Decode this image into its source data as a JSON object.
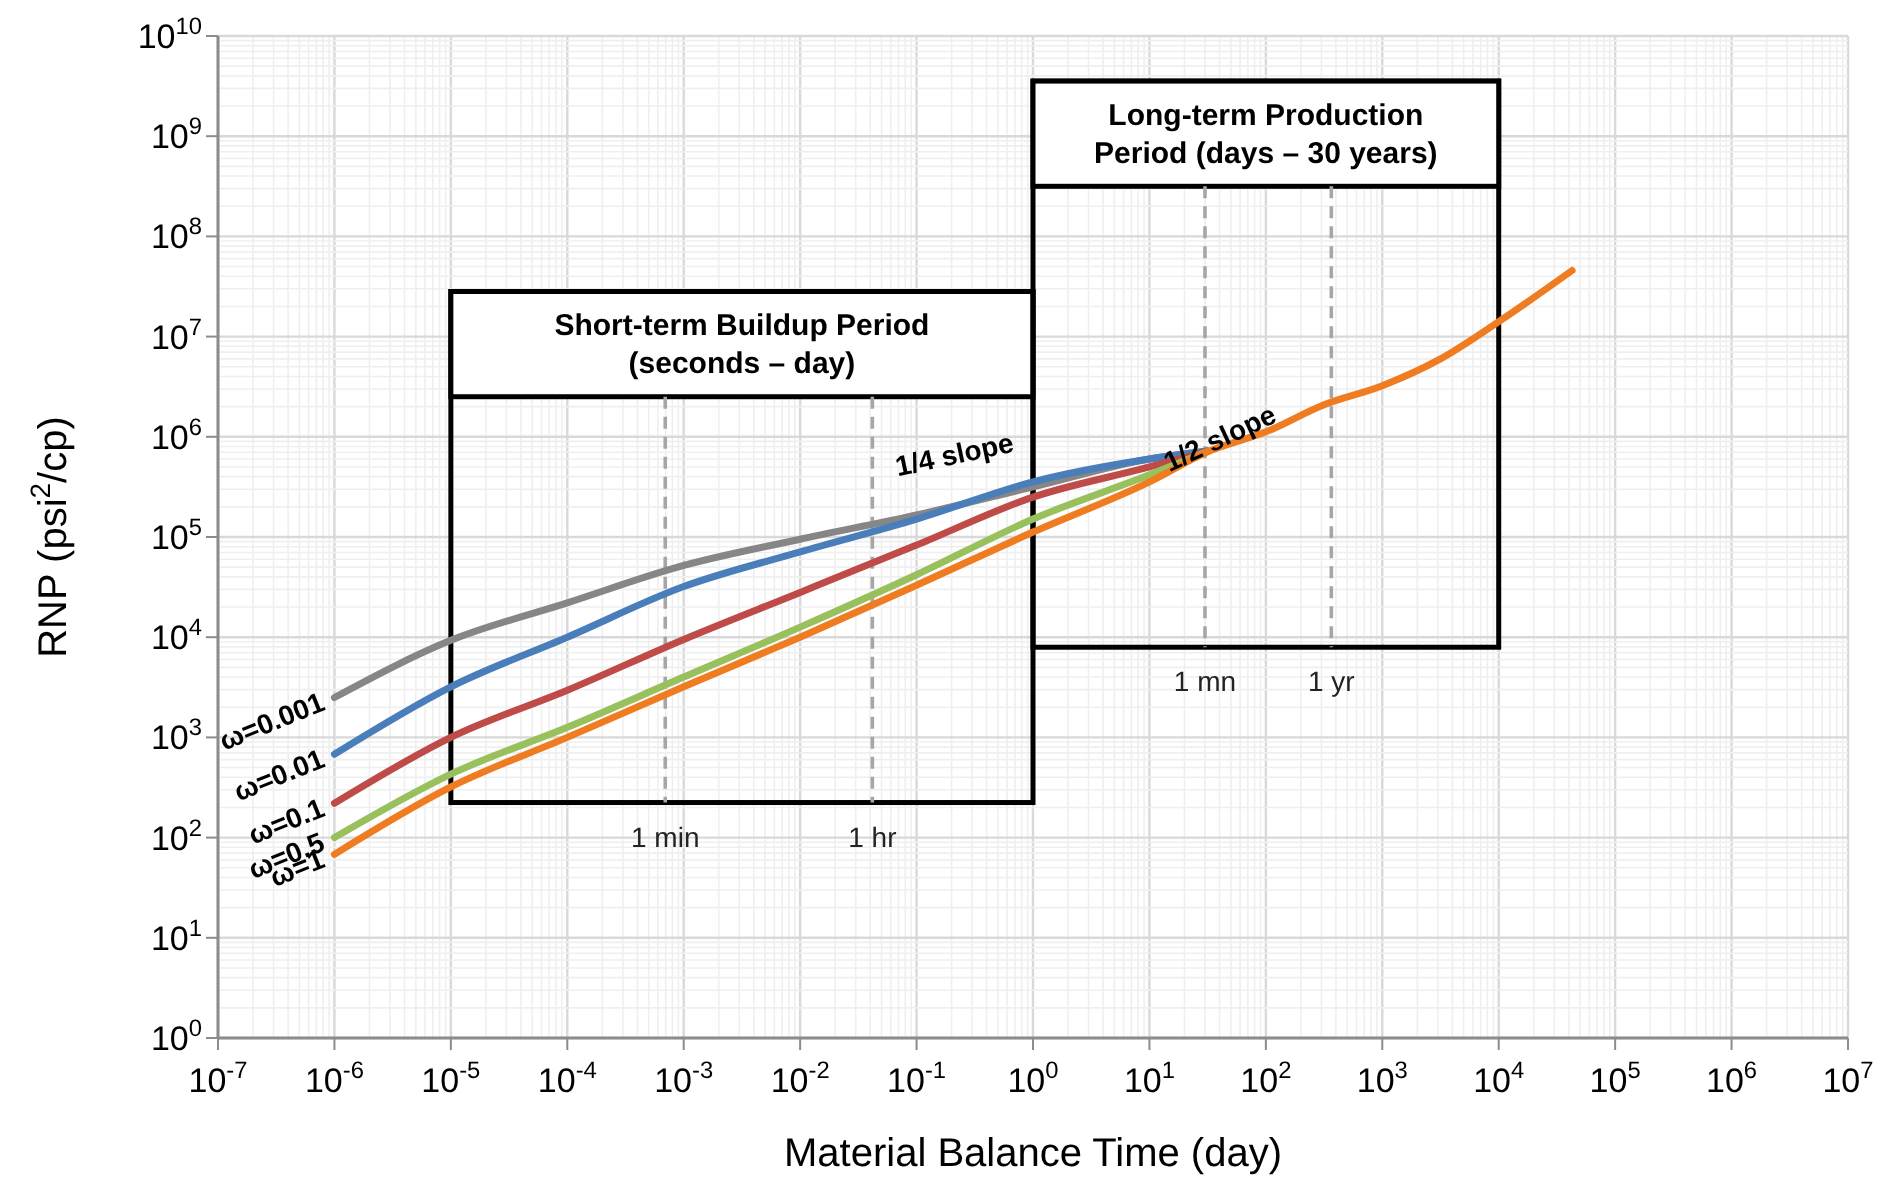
{
  "chart_data": {
    "type": "line",
    "xlabel": "Material Balance Time (day)",
    "ylabel": "RNP (psi$^{2}$/cp)",
    "log": "xy",
    "grid": true,
    "line_style": "solid",
    "marker": "none",
    "x": [
      1e-06,
      1e-05,
      0.0001,
      0.001,
      0.01,
      0.1,
      1,
      10,
      31.6,
      100,
      316,
      1000,
      3162,
      10000,
      42700
    ],
    "xlim": [
      1e-07,
      10000000.0
    ],
    "ylim": [
      1,
      10000000000.0
    ],
    "xticks": [
      {
        "value": 1e-07,
        "label": "10$^{-7}$"
      },
      {
        "value": 1e-06,
        "label": "10$^{-6}$"
      },
      {
        "value": 1e-05,
        "label": "10$^{-5}$"
      },
      {
        "value": 0.0001,
        "label": "10$^{-4}$"
      },
      {
        "value": 0.001,
        "label": "10$^{-3}$"
      },
      {
        "value": 0.01,
        "label": "10$^{-2}$"
      },
      {
        "value": 0.1,
        "label": "10$^{-1}$"
      },
      {
        "value": 1,
        "label": "10$^{0}$"
      },
      {
        "value": 10,
        "label": "10$^{1}$"
      },
      {
        "value": 100,
        "label": "10$^{2}$"
      },
      {
        "value": 1000,
        "label": "10$^{3}$"
      },
      {
        "value": 10000,
        "label": "10$^{4}$"
      },
      {
        "value": 100000,
        "label": "10$^{5}$"
      },
      {
        "value": 1000000,
        "label": "10$^{6}$"
      },
      {
        "value": 10000000,
        "label": "10$^{7}$"
      }
    ],
    "yticks": [
      {
        "value": 1,
        "label": "10$^{0}$"
      },
      {
        "value": 10,
        "label": "10$^{1}$"
      },
      {
        "value": 100,
        "label": "10$^{2}$"
      },
      {
        "value": 1000,
        "label": "10$^{3}$"
      },
      {
        "value": 10000,
        "label": "10$^{4}$"
      },
      {
        "value": 100000,
        "label": "10$^{5}$"
      },
      {
        "value": 1000000,
        "label": "10$^{6}$"
      },
      {
        "value": 10000000,
        "label": "10$^{7}$"
      },
      {
        "value": 100000000,
        "label": "10$^{8}$"
      },
      {
        "value": 1000000000,
        "label": "10$^{9}$"
      },
      {
        "value": 10000000000,
        "label": "10$^{10}$"
      }
    ],
    "series": [
      {
        "name": "ω=0.001",
        "color": "#868686",
        "values": [
          2500,
          9300,
          22000,
          52000,
          95000,
          166000,
          316000,
          600000,
          720000,
          null,
          null,
          null,
          null,
          null,
          null
        ]
      },
      {
        "name": "ω=0.01",
        "color": "#4a7ebb",
        "values": [
          680,
          3200,
          10000,
          32000,
          71000,
          151000,
          355000,
          600000,
          720000,
          null,
          null,
          null,
          null,
          null,
          null
        ]
      },
      {
        "name": "ω=0.1",
        "color": "#be4b48",
        "values": [
          220,
          1000,
          2950,
          9500,
          28000,
          83000,
          250000,
          500000,
          720000,
          null,
          null,
          null,
          null,
          null,
          null
        ]
      },
      {
        "name": "ω=0.5",
        "color": "#98c05c",
        "values": [
          100,
          430,
          1260,
          4000,
          12600,
          42000,
          151000,
          417000,
          715000,
          null,
          null,
          null,
          null,
          null,
          null
        ]
      },
      {
        "name": "ω=1",
        "color": "#f07c22",
        "values": [
          68,
          320,
          1000,
          3200,
          10000,
          33000,
          112000,
          355000,
          708000,
          1120000,
          2090000,
          3240000,
          6000000,
          14100000,
          45700000
        ]
      }
    ],
    "bands": [
      {
        "axis": "x",
        "from": 1e-05,
        "to": 1,
        "label": "Short-term Buildup Period\n(seconds – day)",
        "color": "#000000"
      },
      {
        "axis": "x",
        "from": 1,
        "to": 10000,
        "label": "Long-term Production\nPeriod (days – 30 years)",
        "color": "#000000"
      }
    ],
    "ref_lines": [
      {
        "axis": "x",
        "value": 0.000694,
        "label": "1 min",
        "color": "#a6a6a6",
        "line_style": "dashed"
      },
      {
        "axis": "x",
        "value": 0.0417,
        "label": "1 hr",
        "color": "#a6a6a6",
        "line_style": "dashed"
      },
      {
        "axis": "x",
        "value": 30,
        "label": "1 mn",
        "color": "#a6a6a6",
        "line_style": "dashed"
      },
      {
        "axis": "x",
        "value": 365,
        "label": "1 yr",
        "color": "#a6a6a6",
        "line_style": "dashed"
      }
    ],
    "annotations": [
      "1/4 slope",
      "1/2 slope"
    ]
  }
}
